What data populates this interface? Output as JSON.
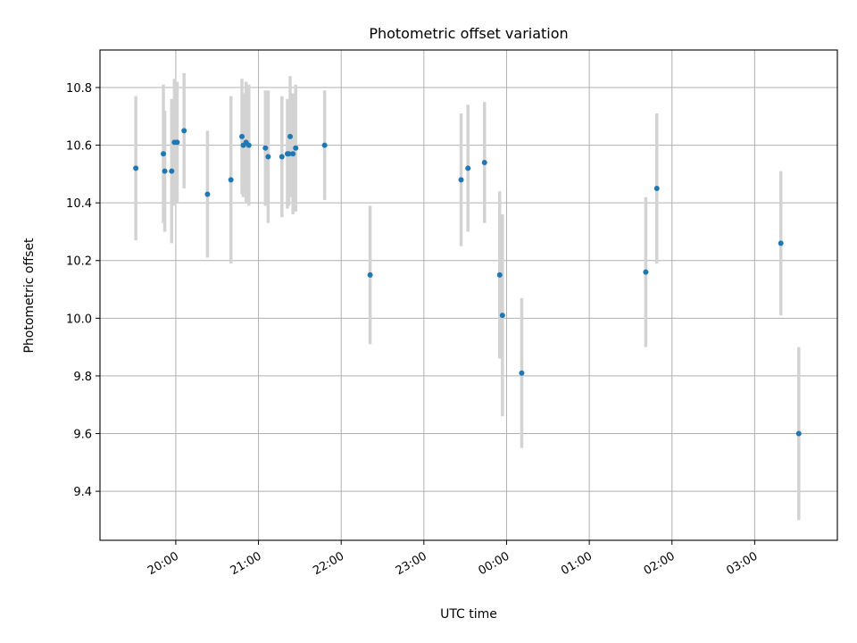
{
  "chart_data": {
    "type": "scatter",
    "title": "Photometric offset variation",
    "xlabel": "UTC time",
    "ylabel": "Photometric offset",
    "grid": true,
    "x_axis_kind": "time",
    "xlim": [
      "19:05",
      "04:00"
    ],
    "ylim": [
      9.23,
      10.93
    ],
    "x_ticks": [
      "20:00",
      "21:00",
      "22:00",
      "23:00",
      "00:00",
      "01:00",
      "02:00",
      "03:00"
    ],
    "y_ticks": [
      9.4,
      9.6,
      9.8,
      10.0,
      10.2,
      10.4,
      10.6,
      10.8
    ],
    "colors": {
      "points": "#1f77b4",
      "error_bars": "#d3d3d3"
    },
    "series": [
      {
        "values": [
          {
            "x": "19:31",
            "y": 10.52,
            "err": 0.25
          },
          {
            "x": "19:51",
            "y": 10.57,
            "err": 0.24
          },
          {
            "x": "19:52",
            "y": 10.51,
            "err": 0.21
          },
          {
            "x": "19:57",
            "y": 10.51,
            "err": 0.25
          },
          {
            "x": "19:59",
            "y": 10.61,
            "err": 0.22
          },
          {
            "x": "20:01",
            "y": 10.61,
            "err": 0.21
          },
          {
            "x": "20:06",
            "y": 10.65,
            "err": 0.2
          },
          {
            "x": "20:23",
            "y": 10.43,
            "err": 0.22
          },
          {
            "x": "20:40",
            "y": 10.48,
            "err": 0.29
          },
          {
            "x": "20:48",
            "y": 10.63,
            "err": 0.2
          },
          {
            "x": "20:49",
            "y": 10.6,
            "err": 0.18
          },
          {
            "x": "20:51",
            "y": 10.61,
            "err": 0.21
          },
          {
            "x": "20:53",
            "y": 10.6,
            "err": 0.21
          },
          {
            "x": "21:05",
            "y": 10.59,
            "err": 0.2
          },
          {
            "x": "21:07",
            "y": 10.56,
            "err": 0.23
          },
          {
            "x": "21:17",
            "y": 10.56,
            "err": 0.21
          },
          {
            "x": "21:21",
            "y": 10.57,
            "err": 0.19
          },
          {
            "x": "21:22",
            "y": 10.57,
            "err": 0.18
          },
          {
            "x": "21:23",
            "y": 10.63,
            "err": 0.21
          },
          {
            "x": "21:25",
            "y": 10.57,
            "err": 0.21
          },
          {
            "x": "21:27",
            "y": 10.59,
            "err": 0.22
          },
          {
            "x": "21:48",
            "y": 10.6,
            "err": 0.19
          },
          {
            "x": "22:21",
            "y": 10.15,
            "err": 0.24
          },
          {
            "x": "23:27",
            "y": 10.48,
            "err": 0.23
          },
          {
            "x": "23:32",
            "y": 10.52,
            "err": 0.22
          },
          {
            "x": "23:44",
            "y": 10.54,
            "err": 0.21
          },
          {
            "x": "23:55",
            "y": 10.15,
            "err": 0.29
          },
          {
            "x": "23:57",
            "y": 10.01,
            "err": 0.35
          },
          {
            "x": "00:11",
            "y": 9.81,
            "err": 0.26
          },
          {
            "x": "01:41",
            "y": 10.16,
            "err": 0.26
          },
          {
            "x": "01:49",
            "y": 10.45,
            "err": 0.26
          },
          {
            "x": "03:19",
            "y": 10.26,
            "err": 0.25
          },
          {
            "x": "03:32",
            "y": 9.6,
            "err": 0.3
          }
        ]
      }
    ]
  }
}
